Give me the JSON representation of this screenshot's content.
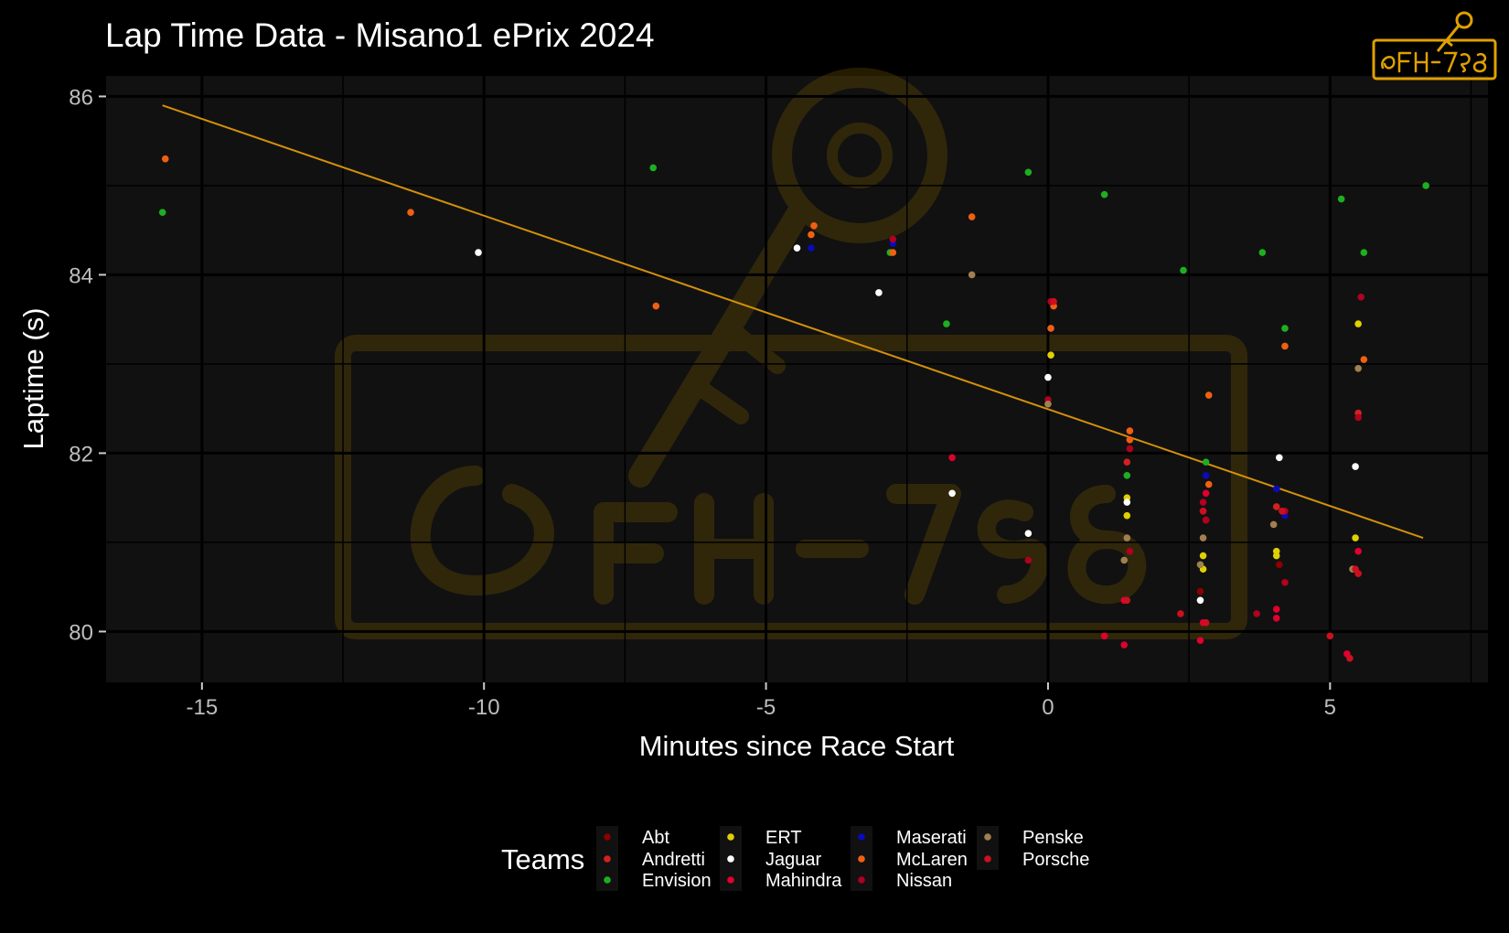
{
  "colors": {
    "background": "#000000",
    "panel": "#111111",
    "grid": "#000000",
    "trend": "#d4900a",
    "watermark": "#d4a000"
  },
  "logo_text": "@FH-798",
  "chart_data": {
    "type": "scatter",
    "title": "Lap Time Data - Misano1 ePrix 2024",
    "xlabel": "Minutes since Race Start",
    "ylabel": "Laptime (s)",
    "xlim": [
      -16.7,
      7.8
    ],
    "ylim": [
      79.43,
      86.23
    ],
    "xticks": [
      -15,
      -10,
      -5,
      0,
      5
    ],
    "xtick_labels": [
      "-15",
      "-10",
      "-5",
      "0",
      "5"
    ],
    "yticks": [
      80,
      82,
      84,
      86
    ],
    "ytick_labels": [
      "80",
      "82",
      "84",
      "86"
    ],
    "grid": true,
    "legend_title": "Teams",
    "legend_position": "bottom",
    "trend_line": {
      "x": [
        -15.7,
        6.65
      ],
      "y": [
        85.9,
        81.05
      ]
    },
    "series": [
      {
        "name": "Abt",
        "color": "#8b0000",
        "points": [
          [
            2.7,
            80.45
          ],
          [
            4.1,
            80.75
          ],
          [
            5.5,
            80.65
          ]
        ]
      },
      {
        "name": "Andretti",
        "color": "#d42020",
        "points": [
          [
            1.4,
            81.9
          ],
          [
            2.8,
            81.25
          ],
          [
            4.05,
            81.4
          ],
          [
            5.5,
            82.45
          ]
        ]
      },
      {
        "name": "Envision",
        "color": "#1fae1f",
        "points": [
          [
            -15.7,
            84.7
          ],
          [
            -7.0,
            85.2
          ],
          [
            -2.8,
            84.25
          ],
          [
            -1.8,
            83.45
          ],
          [
            -0.35,
            85.15
          ],
          [
            1.0,
            84.9
          ],
          [
            1.4,
            81.75
          ],
          [
            2.4,
            84.05
          ],
          [
            2.8,
            81.9
          ],
          [
            3.8,
            84.25
          ],
          [
            4.2,
            83.4
          ],
          [
            5.2,
            84.85
          ],
          [
            5.6,
            84.25
          ],
          [
            6.7,
            85.0
          ]
        ]
      },
      {
        "name": "ERT",
        "color": "#e0d000",
        "points": [
          [
            0.05,
            83.1
          ],
          [
            1.4,
            81.5
          ],
          [
            1.4,
            81.3
          ],
          [
            2.75,
            80.85
          ],
          [
            2.75,
            80.7
          ],
          [
            4.05,
            80.9
          ],
          [
            4.05,
            80.85
          ],
          [
            5.5,
            83.45
          ],
          [
            5.45,
            81.05
          ]
        ]
      },
      {
        "name": "Jaguar",
        "color": "#ffffff",
        "points": [
          [
            -10.1,
            84.25
          ],
          [
            -4.45,
            84.3
          ],
          [
            -3.0,
            83.8
          ],
          [
            -1.7,
            81.55
          ],
          [
            -0.35,
            81.1
          ],
          [
            0.0,
            82.85
          ],
          [
            1.4,
            81.45
          ],
          [
            2.7,
            80.35
          ],
          [
            4.1,
            81.95
          ],
          [
            5.45,
            81.85
          ]
        ]
      },
      {
        "name": "Mahindra",
        "color": "#e00030",
        "points": [
          [
            -1.7,
            81.95
          ],
          [
            1.0,
            79.95
          ],
          [
            1.35,
            79.85
          ],
          [
            1.35,
            80.35
          ],
          [
            2.7,
            79.9
          ],
          [
            2.75,
            80.1
          ],
          [
            2.8,
            81.55
          ],
          [
            4.05,
            80.25
          ],
          [
            4.05,
            80.15
          ],
          [
            5.3,
            79.75
          ],
          [
            5.5,
            80.9
          ]
        ]
      },
      {
        "name": "Maserati",
        "color": "#0a0ab8",
        "points": [
          [
            -4.2,
            84.3
          ],
          [
            -2.75,
            84.35
          ],
          [
            0.05,
            83.4
          ],
          [
            1.45,
            82.25
          ],
          [
            2.8,
            81.75
          ],
          [
            4.05,
            81.6
          ],
          [
            4.2,
            81.3
          ]
        ]
      },
      {
        "name": "McLaren",
        "color": "#f06010",
        "points": [
          [
            -15.65,
            85.3
          ],
          [
            -11.3,
            84.7
          ],
          [
            -6.95,
            83.65
          ],
          [
            -4.2,
            84.45
          ],
          [
            -4.15,
            84.55
          ],
          [
            -2.75,
            84.25
          ],
          [
            -1.35,
            84.65
          ],
          [
            0.1,
            83.65
          ],
          [
            0.05,
            83.4
          ],
          [
            1.45,
            82.25
          ],
          [
            1.45,
            82.15
          ],
          [
            2.85,
            82.65
          ],
          [
            2.85,
            81.65
          ],
          [
            4.2,
            83.2
          ],
          [
            5.6,
            83.05
          ]
        ]
      },
      {
        "name": "Nissan",
        "color": "#b00020",
        "points": [
          [
            -2.75,
            84.4
          ],
          [
            -0.35,
            80.8
          ],
          [
            0.0,
            82.6
          ],
          [
            0.05,
            83.7
          ],
          [
            1.45,
            82.05
          ],
          [
            1.45,
            80.9
          ],
          [
            2.75,
            81.45
          ],
          [
            2.75,
            81.35
          ],
          [
            2.8,
            81.25
          ],
          [
            3.7,
            80.2
          ],
          [
            4.2,
            80.55
          ],
          [
            4.2,
            81.35
          ],
          [
            5.55,
            83.75
          ],
          [
            5.5,
            82.4
          ]
        ]
      },
      {
        "name": "Penske",
        "color": "#a08050",
        "points": [
          [
            -1.35,
            84.0
          ],
          [
            0.0,
            82.55
          ],
          [
            1.35,
            80.8
          ],
          [
            1.4,
            81.05
          ],
          [
            2.75,
            81.05
          ],
          [
            2.7,
            80.75
          ],
          [
            4.0,
            81.2
          ],
          [
            5.5,
            82.95
          ],
          [
            5.4,
            80.7
          ]
        ]
      },
      {
        "name": "Porsche",
        "color": "#cc1020",
        "points": [
          [
            0.1,
            83.7
          ],
          [
            1.4,
            80.35
          ],
          [
            2.35,
            80.2
          ],
          [
            2.8,
            80.1
          ],
          [
            2.75,
            81.35
          ],
          [
            4.15,
            81.35
          ],
          [
            5.0,
            79.95
          ],
          [
            5.35,
            79.7
          ],
          [
            5.5,
            80.65
          ],
          [
            5.45,
            80.7
          ]
        ]
      }
    ]
  }
}
